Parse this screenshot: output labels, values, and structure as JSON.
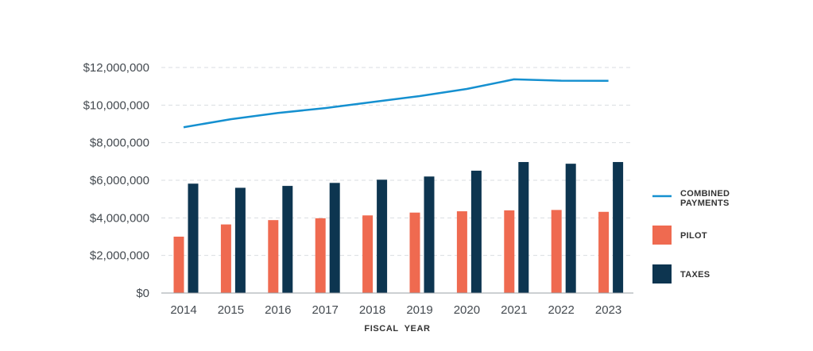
{
  "chart_data": {
    "type": "bar",
    "categories": [
      "2014",
      "2015",
      "2016",
      "2017",
      "2018",
      "2019",
      "2020",
      "2021",
      "2022",
      "2023"
    ],
    "series": [
      {
        "name": "PILOT",
        "type": "bar",
        "color": "#ef6a50",
        "values": [
          3000000,
          3650000,
          3880000,
          3980000,
          4130000,
          4280000,
          4350000,
          4400000,
          4420000,
          4320000
        ]
      },
      {
        "name": "TAXES",
        "type": "bar",
        "color": "#0d3550",
        "values": [
          5820000,
          5600000,
          5700000,
          5860000,
          6030000,
          6200000,
          6510000,
          6970000,
          6880000,
          6970000
        ]
      },
      {
        "name": "COMBINED PAYMENTS",
        "type": "line",
        "color": "#1590d0",
        "values": [
          8820000,
          9250000,
          9580000,
          9840000,
          10160000,
          10480000,
          10860000,
          11370000,
          11300000,
          11290000
        ]
      }
    ],
    "legend_lines": {
      "combined": [
        "COMBINED",
        "PAYMENTS"
      ],
      "pilot": [
        "PILOT"
      ],
      "taxes": [
        "TAXES"
      ]
    },
    "y_ticks": [
      "$0",
      "$2,000,000",
      "$4,000,000",
      "$6,000,000",
      "$8,000,000",
      "$10,000,000",
      "$12,000,000"
    ],
    "ylim": [
      0,
      12000000
    ],
    "xlabel": "FISCAL  YEAR",
    "ylabel": "",
    "title": "",
    "grid": true,
    "legend": "right"
  }
}
